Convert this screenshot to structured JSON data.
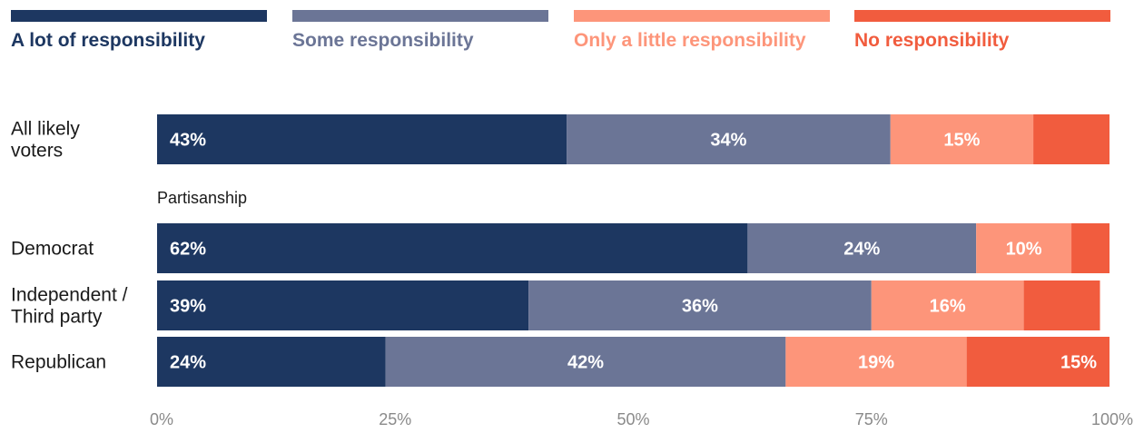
{
  "chart_data": {
    "type": "bar",
    "orientation": "horizontal",
    "stacked": true,
    "legend_position": "top",
    "legend": [
      {
        "label": "A lot of responsibility",
        "color": "#1d3761"
      },
      {
        "label": "Some responsibility",
        "color": "#6b7596"
      },
      {
        "label": "Only a little responsibility",
        "color": "#fd957a"
      },
      {
        "label": "No responsibility",
        "color": "#f15c3e"
      }
    ],
    "group_label": "Partisanship",
    "categories": [
      "All likely voters",
      "Democrat",
      "Independent / Third party",
      "Republican"
    ],
    "category_label_lines": [
      [
        "All likely",
        "voters"
      ],
      [
        "Democrat"
      ],
      [
        "Independent /",
        "Third party"
      ],
      [
        "Republican"
      ]
    ],
    "series": [
      {
        "name": "A lot of responsibility",
        "values": [
          43,
          62,
          39,
          24
        ],
        "labels": [
          "43%",
          "62%",
          "39%",
          "24%"
        ]
      },
      {
        "name": "Some responsibility",
        "values": [
          34,
          24,
          36,
          42
        ],
        "labels": [
          "34%",
          "24%",
          "36%",
          "42%"
        ]
      },
      {
        "name": "Only a little responsibility",
        "values": [
          15,
          10,
          16,
          19
        ],
        "labels": [
          "15%",
          "10%",
          "16%",
          "19%"
        ]
      },
      {
        "name": "No responsibility",
        "values": [
          8,
          4,
          8,
          15
        ],
        "labels": [
          "",
          "",
          "",
          "15%"
        ]
      }
    ],
    "xlim": [
      0,
      100
    ],
    "x_ticks": [
      0,
      25,
      50,
      75,
      100
    ],
    "x_tick_labels": [
      "0%",
      "25%",
      "50%",
      "75%",
      "100%"
    ],
    "grid": false
  }
}
